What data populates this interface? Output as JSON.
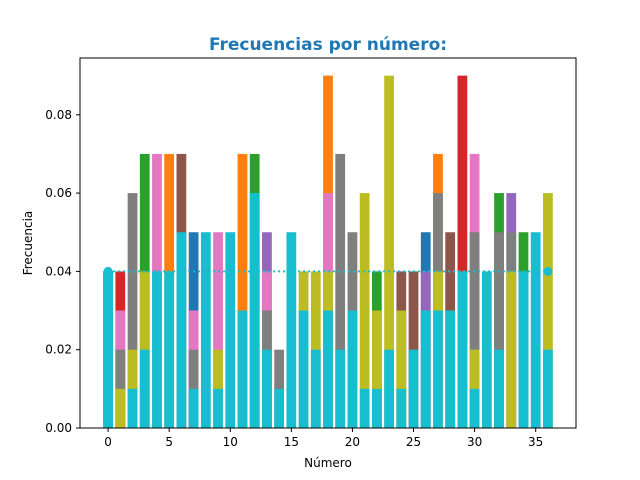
{
  "chart_data": {
    "type": "bar",
    "title": "Frecuencias por número:",
    "xlabel": "Número",
    "ylabel": "Frecuencia",
    "xlim": [
      -2.3,
      38.3
    ],
    "ylim": [
      0.0,
      0.0945
    ],
    "x_ticks": [
      0,
      5,
      10,
      15,
      20,
      25,
      30,
      35
    ],
    "y_ticks": [
      0.0,
      0.02,
      0.04,
      0.06,
      0.08
    ],
    "y_tick_labels": [
      "0.00",
      "0.02",
      "0.04",
      "0.06",
      "0.08"
    ],
    "x_tick_labels": [
      "0",
      "5",
      "10",
      "15",
      "20",
      "25",
      "30",
      "35"
    ],
    "reference_line": {
      "value": 0.04,
      "style": "dotted",
      "color": "#17becf",
      "endpoints": [
        0,
        36
      ]
    },
    "grid": false,
    "legend": "none",
    "stacked_overlay": true,
    "series_colors": [
      "#1f77b4",
      "#ff7f0e",
      "#2ca02c",
      "#d62728",
      "#9467bd",
      "#8c564b",
      "#e377c2",
      "#7f7f7f",
      "#bcbd22",
      "#17becf"
    ],
    "categories": [
      0,
      1,
      2,
      3,
      4,
      5,
      6,
      7,
      8,
      9,
      10,
      11,
      12,
      13,
      14,
      15,
      16,
      17,
      18,
      19,
      20,
      21,
      22,
      23,
      24,
      25,
      26,
      27,
      28,
      29,
      30,
      31,
      32,
      33,
      34,
      35,
      36
    ],
    "series": [
      {
        "values": [
          0.04,
          0.0,
          0.0,
          0.0,
          0.0,
          0.0,
          0.0,
          0.05,
          0.0,
          0.0,
          0.0,
          0.0,
          0.0,
          0.0,
          0.0,
          0.0,
          0.0,
          0.0,
          0.0,
          0.0,
          0.0,
          0.0,
          0.0,
          0.0,
          0.0,
          0.0,
          0.05,
          0.0,
          0.0,
          0.0,
          0.0,
          0.0,
          0.0,
          0.0,
          0.0,
          0.0,
          0.0
        ]
      },
      {
        "values": [
          0.04,
          0.0,
          0.0,
          0.0,
          0.0,
          0.07,
          0.0,
          0.0,
          0.0,
          0.0,
          0.0,
          0.07,
          0.0,
          0.0,
          0.0,
          0.0,
          0.0,
          0.0,
          0.09,
          0.0,
          0.0,
          0.0,
          0.0,
          0.0,
          0.0,
          0.0,
          0.0,
          0.07,
          0.0,
          0.0,
          0.0,
          0.0,
          0.0,
          0.0,
          0.0,
          0.0,
          0.0
        ]
      },
      {
        "values": [
          0.04,
          0.0,
          0.0,
          0.07,
          0.0,
          0.0,
          0.0,
          0.0,
          0.0,
          0.0,
          0.0,
          0.0,
          0.07,
          0.0,
          0.0,
          0.0,
          0.0,
          0.0,
          0.0,
          0.0,
          0.0,
          0.0,
          0.04,
          0.0,
          0.0,
          0.0,
          0.0,
          0.0,
          0.0,
          0.0,
          0.0,
          0.0,
          0.06,
          0.0,
          0.05,
          0.0,
          0.0
        ]
      },
      {
        "values": [
          0.04,
          0.04,
          0.0,
          0.0,
          0.0,
          0.0,
          0.0,
          0.0,
          0.0,
          0.0,
          0.0,
          0.0,
          0.0,
          0.0,
          0.0,
          0.0,
          0.0,
          0.0,
          0.0,
          0.0,
          0.0,
          0.0,
          0.0,
          0.0,
          0.0,
          0.0,
          0.0,
          0.0,
          0.0,
          0.09,
          0.0,
          0.0,
          0.0,
          0.0,
          0.0,
          0.0,
          0.0
        ]
      },
      {
        "values": [
          0.04,
          0.0,
          0.0,
          0.0,
          0.0,
          0.0,
          0.0,
          0.0,
          0.0,
          0.0,
          0.0,
          0.0,
          0.0,
          0.05,
          0.0,
          0.0,
          0.0,
          0.0,
          0.0,
          0.0,
          0.0,
          0.0,
          0.0,
          0.0,
          0.0,
          0.0,
          0.04,
          0.0,
          0.0,
          0.0,
          0.0,
          0.0,
          0.0,
          0.06,
          0.0,
          0.0,
          0.0
        ]
      },
      {
        "values": [
          0.04,
          0.0,
          0.0,
          0.0,
          0.0,
          0.0,
          0.07,
          0.0,
          0.0,
          0.0,
          0.0,
          0.0,
          0.0,
          0.0,
          0.0,
          0.0,
          0.0,
          0.0,
          0.0,
          0.0,
          0.0,
          0.0,
          0.0,
          0.0,
          0.04,
          0.04,
          0.0,
          0.0,
          0.05,
          0.0,
          0.0,
          0.0,
          0.0,
          0.0,
          0.0,
          0.0,
          0.0
        ]
      },
      {
        "values": [
          0.04,
          0.03,
          0.0,
          0.0,
          0.07,
          0.0,
          0.0,
          0.03,
          0.0,
          0.05,
          0.0,
          0.0,
          0.0,
          0.04,
          0.0,
          0.0,
          0.0,
          0.0,
          0.06,
          0.0,
          0.0,
          0.0,
          0.0,
          0.0,
          0.0,
          0.0,
          0.0,
          0.0,
          0.0,
          0.0,
          0.07,
          0.0,
          0.0,
          0.0,
          0.0,
          0.0,
          0.0
        ]
      },
      {
        "values": [
          0.04,
          0.02,
          0.06,
          0.0,
          0.0,
          0.0,
          0.0,
          0.02,
          0.0,
          0.0,
          0.0,
          0.0,
          0.0,
          0.03,
          0.02,
          0.0,
          0.0,
          0.0,
          0.0,
          0.07,
          0.05,
          0.0,
          0.0,
          0.0,
          0.0,
          0.0,
          0.0,
          0.06,
          0.0,
          0.0,
          0.05,
          0.0,
          0.05,
          0.05,
          0.0,
          0.0,
          0.0
        ]
      },
      {
        "values": [
          0.04,
          0.01,
          0.02,
          0.04,
          0.0,
          0.0,
          0.0,
          0.0,
          0.0,
          0.02,
          0.0,
          0.0,
          0.0,
          0.0,
          0.0,
          0.0,
          0.04,
          0.04,
          0.04,
          0.0,
          0.0,
          0.06,
          0.03,
          0.09,
          0.03,
          0.0,
          0.0,
          0.04,
          0.0,
          0.0,
          0.02,
          0.0,
          0.0,
          0.04,
          0.0,
          0.0,
          0.06
        ]
      },
      {
        "values": [
          0.04,
          0.0,
          0.01,
          0.02,
          0.04,
          0.04,
          0.05,
          0.01,
          0.05,
          0.01,
          0.05,
          0.03,
          0.06,
          0.02,
          0.01,
          0.05,
          0.03,
          0.02,
          0.03,
          0.02,
          0.03,
          0.01,
          0.01,
          0.02,
          0.01,
          0.02,
          0.03,
          0.03,
          0.03,
          0.04,
          0.01,
          0.04,
          0.02,
          0.0,
          0.04,
          0.05,
          0.02
        ]
      }
    ]
  }
}
